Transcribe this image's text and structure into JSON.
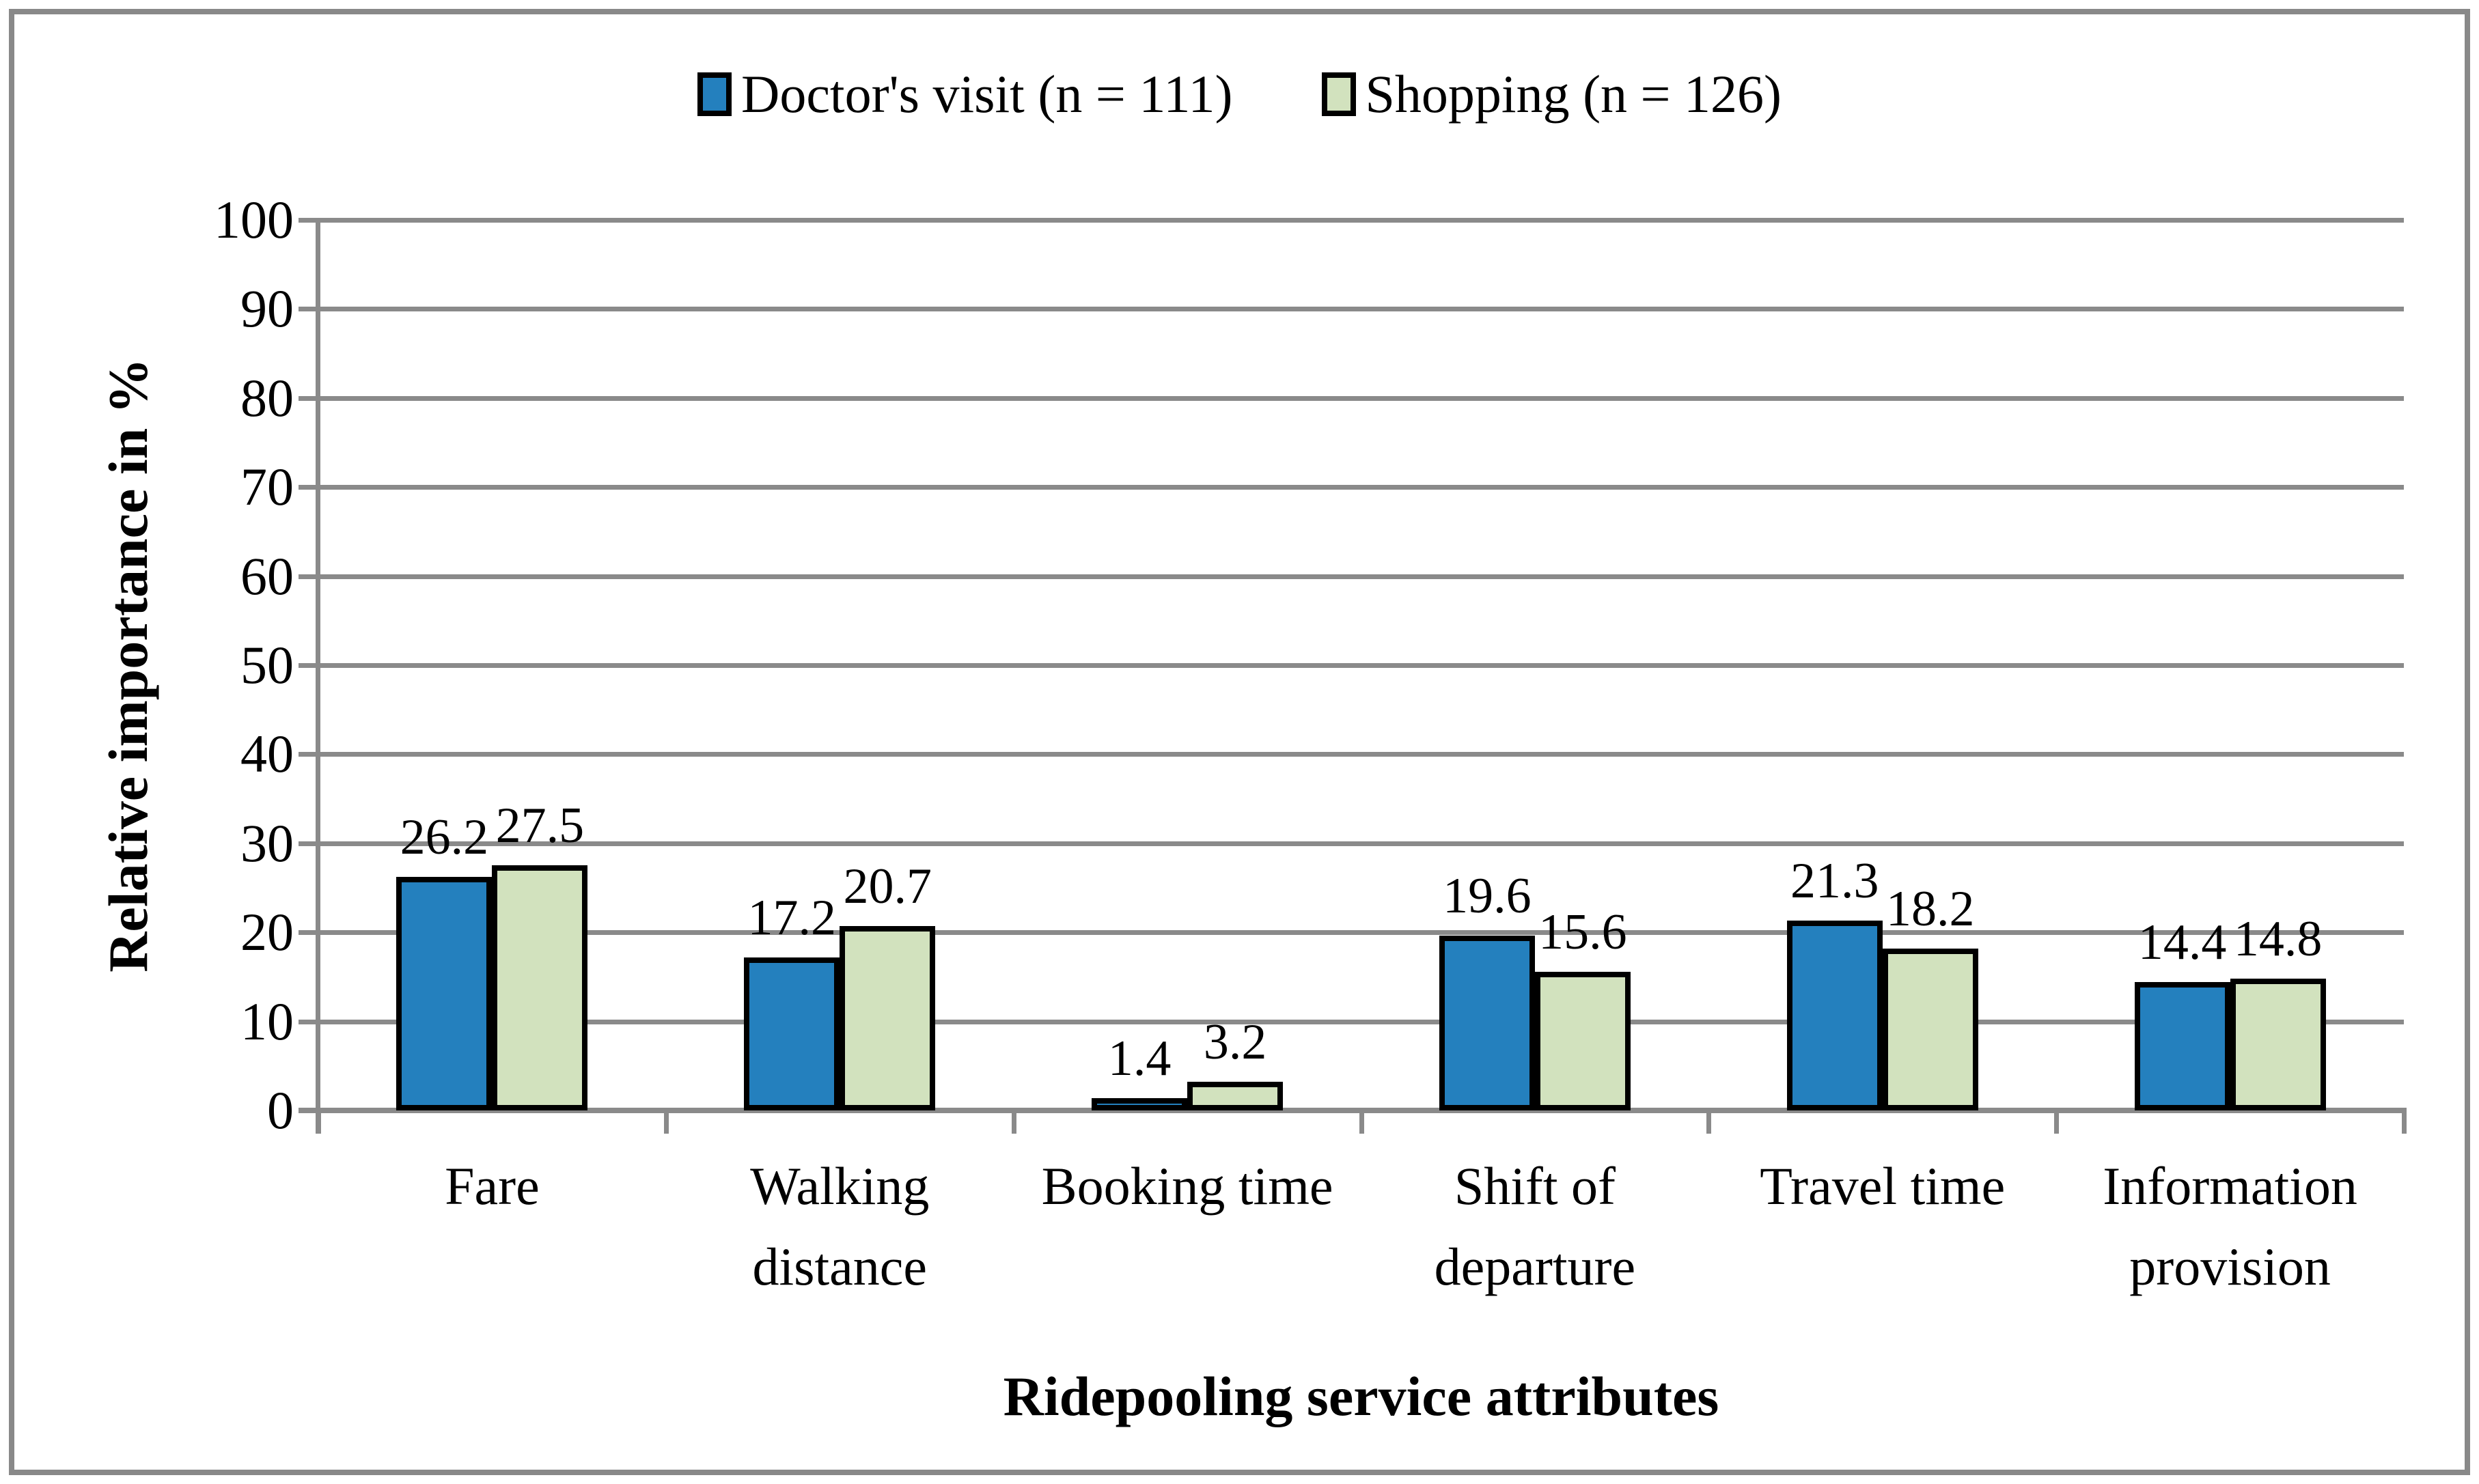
{
  "figure": {
    "border_color": "#898989",
    "background_color": "#ffffff",
    "gridline_color": "#8A8A8A",
    "bar_outline_color": "#000000"
  },
  "chart_data": {
    "type": "bar",
    "title": "",
    "categories": [
      "Fare",
      "Walking\ndistance",
      "Booking time",
      "Shift of\ndeparture",
      "Travel time",
      "Information\nprovision"
    ],
    "series": [
      {
        "name": "Doctor's visit (n = 111)",
        "color": "#2480BE",
        "values": [
          26.2,
          17.2,
          1.4,
          19.6,
          21.3,
          14.4
        ]
      },
      {
        "name": "Shopping (n = 126)",
        "color": "#D2E2BE",
        "values": [
          27.5,
          20.7,
          3.2,
          15.6,
          18.2,
          14.8
        ]
      }
    ],
    "xlabel": "Ridepooling service attributes",
    "ylabel": "Relative importance in %",
    "ylim": [
      0,
      100
    ],
    "yticks": [
      0,
      10,
      20,
      30,
      40,
      50,
      60,
      70,
      80,
      90,
      100
    ],
    "grid": true,
    "legend_position": "top-center",
    "data_labels": true
  }
}
